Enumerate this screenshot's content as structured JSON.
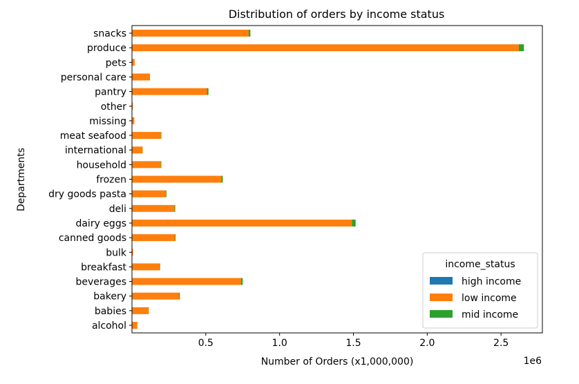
{
  "chart_data": {
    "type": "bar",
    "orientation": "horizontal",
    "stacked": true,
    "title": "Distribution of orders by income status",
    "xlabel": "Number of Orders (x1,000,000)",
    "ylabel": "Departments",
    "x_offset_text": "1e6",
    "xlim": [
      0,
      2.78
    ],
    "xticks": [
      0.5,
      1.0,
      1.5,
      2.0,
      2.5
    ],
    "xtick_labels": [
      "0.5",
      "1.0",
      "1.5",
      "2.0",
      "2.5"
    ],
    "grid": false,
    "legend_position": "bottom-right",
    "legend_title": "income_status",
    "categories": [
      "alcohol",
      "babies",
      "bakery",
      "beverages",
      "breakfast",
      "bulk",
      "canned goods",
      "dairy eggs",
      "deli",
      "dry goods pasta",
      "frozen",
      "household",
      "international",
      "meat seafood",
      "missing",
      "other",
      "pantry",
      "personal care",
      "pets",
      "produce",
      "snacks"
    ],
    "series": [
      {
        "name": "high income",
        "color": "#1f77b4",
        "values": [
          0.0,
          0.0,
          0.0,
          0.0,
          0.0,
          0.0,
          0.0,
          0.0,
          0.0,
          0.0,
          0.0,
          0.0,
          0.0,
          0.0,
          0.0,
          0.0,
          0.0,
          0.0,
          0.0,
          0.0,
          0.0
        ]
      },
      {
        "name": "low income",
        "color": "#ff7f0e",
        "values": [
          0.035,
          0.112,
          0.318,
          0.738,
          0.188,
          0.007,
          0.29,
          1.49,
          0.288,
          0.23,
          0.605,
          0.195,
          0.072,
          0.195,
          0.016,
          0.006,
          0.508,
          0.12,
          0.018,
          2.62,
          0.79
        ]
      },
      {
        "name": "mid income",
        "color": "#2ca02c",
        "values": [
          0.001,
          0.002,
          0.006,
          0.012,
          0.003,
          0.0,
          0.005,
          0.025,
          0.005,
          0.004,
          0.01,
          0.004,
          0.001,
          0.004,
          0.0,
          0.0,
          0.01,
          0.002,
          0.0,
          0.035,
          0.012
        ]
      }
    ]
  }
}
